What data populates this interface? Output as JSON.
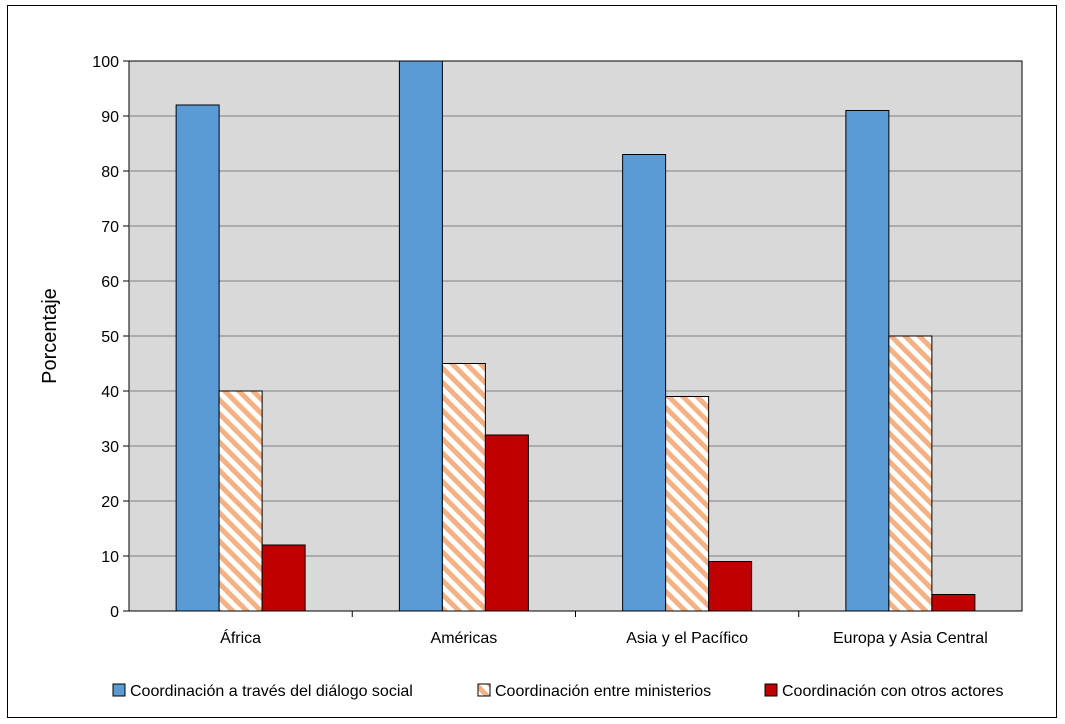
{
  "chart_data": {
    "type": "bar",
    "title": "",
    "xlabel": "",
    "ylabel": "Porcentaje",
    "ylim": [
      0,
      100
    ],
    "yticks": [
      0,
      10,
      20,
      30,
      40,
      50,
      60,
      70,
      80,
      90,
      100
    ],
    "grid": true,
    "legend_position": "bottom",
    "categories": [
      "África",
      "Américas",
      "Asia y el Pacífico",
      "Europa y Asia Central"
    ],
    "series": [
      {
        "name": "Coordinación a través del diálogo social",
        "values": [
          92,
          100,
          83,
          91
        ],
        "color": "#5b9bd5",
        "pattern": "solid"
      },
      {
        "name": "Coordinación entre ministerios",
        "values": [
          40,
          45,
          39,
          50
        ],
        "color": "#f4b183",
        "pattern": "diagonal-stripes"
      },
      {
        "name": "Coordinación con otros actores",
        "values": [
          12,
          32,
          9,
          3
        ],
        "color": "#c00000",
        "pattern": "solid"
      }
    ]
  }
}
